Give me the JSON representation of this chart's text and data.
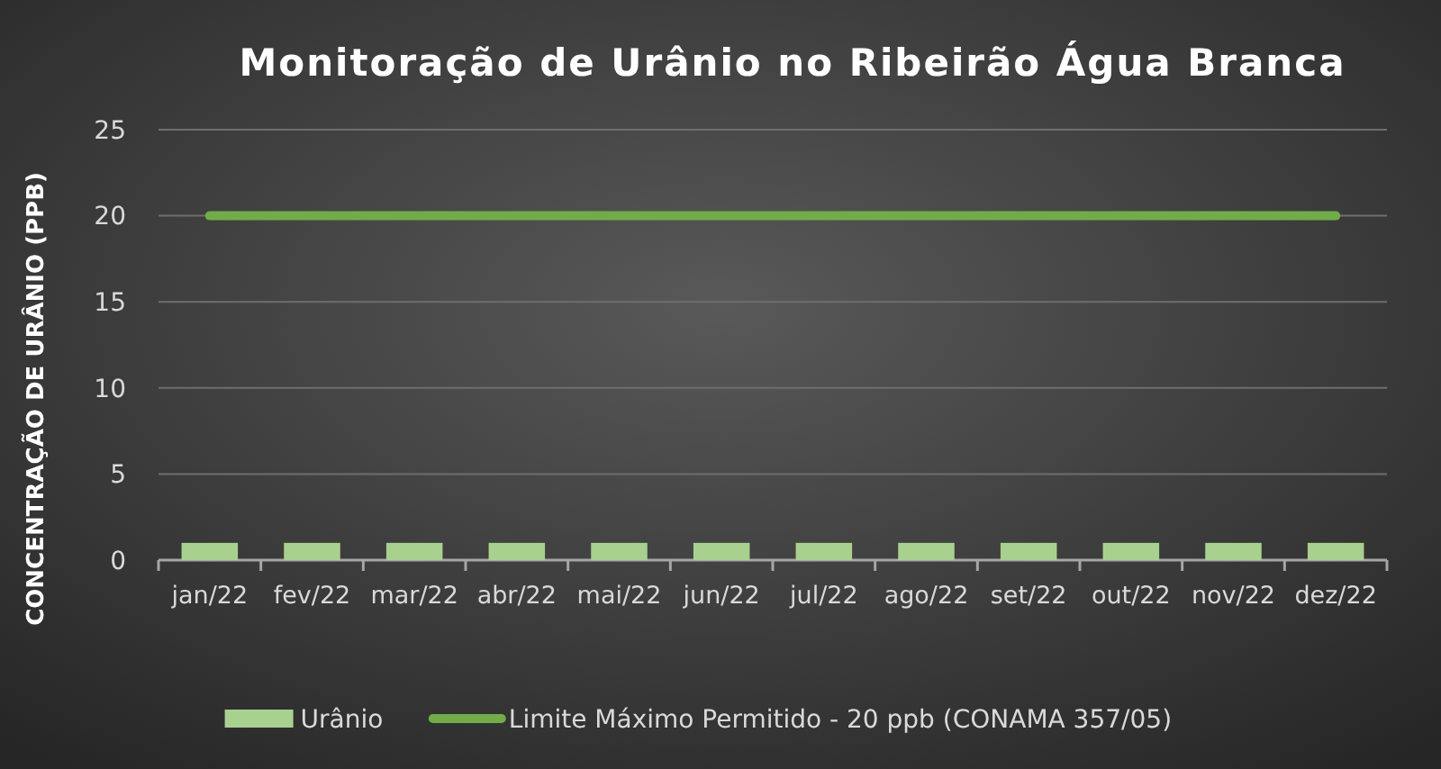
{
  "chart_data": {
    "type": "bar",
    "title": "Monitoração de Urânio no Ribeirão Água Branca",
    "ylabel": "CONCENTRAÇÃO DE URÂNIO (PPB)",
    "categories": [
      "jan/22",
      "fev/22",
      "mar/22",
      "abr/22",
      "mai/22",
      "jun/22",
      "jul/22",
      "ago/22",
      "set/22",
      "out/22",
      "nov/22",
      "dez/22"
    ],
    "series": [
      {
        "name": "Urânio",
        "color": "#a9d18e",
        "values": [
          1,
          1,
          1,
          1,
          1,
          1,
          1,
          1,
          1,
          1,
          1,
          1
        ]
      },
      {
        "name": "Limite Máximo Permitido - 20 ppb (CONAMA 357/05)",
        "type": "line",
        "color": "#70ad47",
        "values": [
          20,
          20,
          20,
          20,
          20,
          20,
          20,
          20,
          20,
          20,
          20,
          20
        ]
      }
    ],
    "ylim": [
      0,
      25
    ],
    "yticks": [
      0,
      5,
      10,
      15,
      20,
      25
    ],
    "grid": "y",
    "legend": "bottom",
    "marker": "none"
  }
}
